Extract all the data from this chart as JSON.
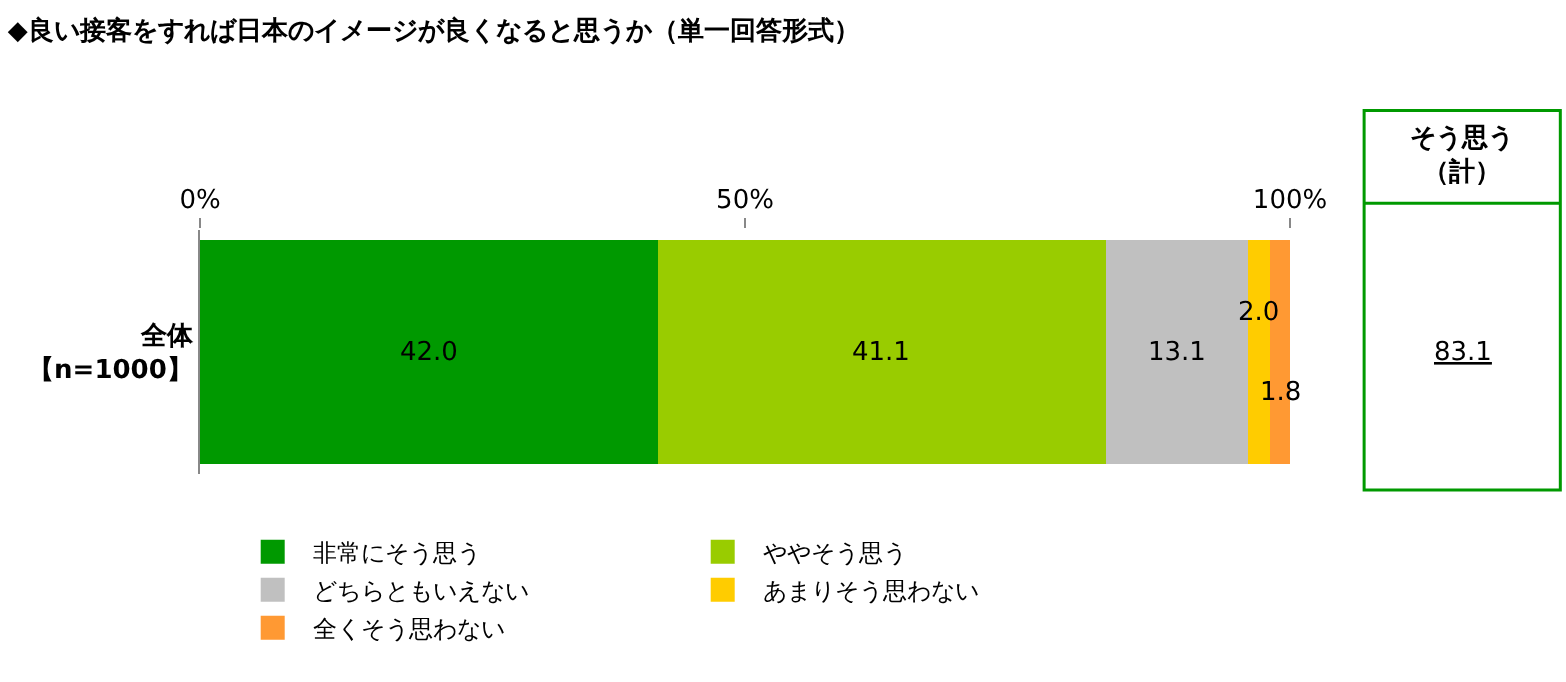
{
  "chart_data": {
    "type": "bar",
    "orientation": "horizontal",
    "stacked": true,
    "title": "◆良い接客をすれば日本のイメージが良くなると思うか（単一回答形式）",
    "categories": [
      "全体【n=1000】"
    ],
    "series": [
      {
        "name": "非常にそう思う",
        "color": "#009900",
        "values": [
          42.0
        ],
        "value_labels": [
          "42.0"
        ]
      },
      {
        "name": "ややそう思う",
        "color": "#99cc00",
        "values": [
          41.1
        ],
        "value_labels": [
          "41.1"
        ]
      },
      {
        "name": "どちらともいえない",
        "color": "#c0c0c0",
        "values": [
          13.1
        ],
        "value_labels": [
          "13.1"
        ]
      },
      {
        "name": "あまりそう思わない",
        "color": "#ffcc00",
        "values": [
          2.0
        ],
        "value_labels": [
          "2.0"
        ]
      },
      {
        "name": "全くそう思わない",
        "color": "#ff9933",
        "values": [
          1.8
        ],
        "value_labels": [
          "1.8"
        ]
      }
    ],
    "xlim": [
      0,
      100
    ],
    "xticks": [
      {
        "value": 0,
        "label": "0%"
      },
      {
        "value": 50,
        "label": "50%"
      },
      {
        "value": 100,
        "label": "100%"
      }
    ],
    "grid": false,
    "legend": "bottom",
    "annotations": [
      "そう思う（計）",
      "83.1"
    ]
  }
}
